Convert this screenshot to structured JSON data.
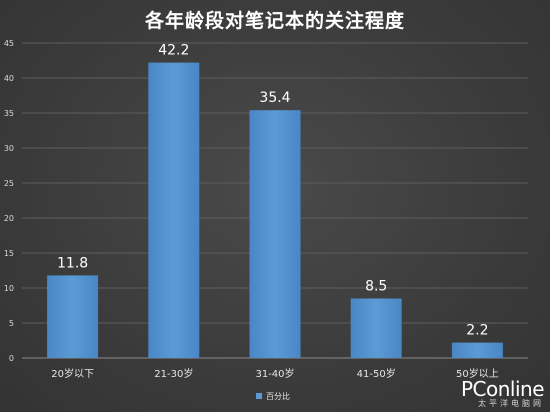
{
  "chart_data": {
    "type": "bar",
    "title": "各年龄段对笔记本的关注程度",
    "categories": [
      "20岁以下",
      "21-30岁",
      "31-40岁",
      "41-50岁",
      "50岁以上"
    ],
    "series": [
      {
        "name": "百分比",
        "values": [
          11.8,
          42.2,
          35.4,
          8.5,
          2.2
        ]
      }
    ],
    "ylim": [
      0,
      45
    ],
    "yticks": [
      "0",
      "5",
      "10",
      "15",
      "20",
      "25",
      "30",
      "35",
      "40",
      "45"
    ],
    "grid": true,
    "legend": "bottom",
    "bar_color": "#5b9bd5"
  },
  "watermark": {
    "brand": "PConline",
    "tagline": "太平洋电脑网"
  }
}
